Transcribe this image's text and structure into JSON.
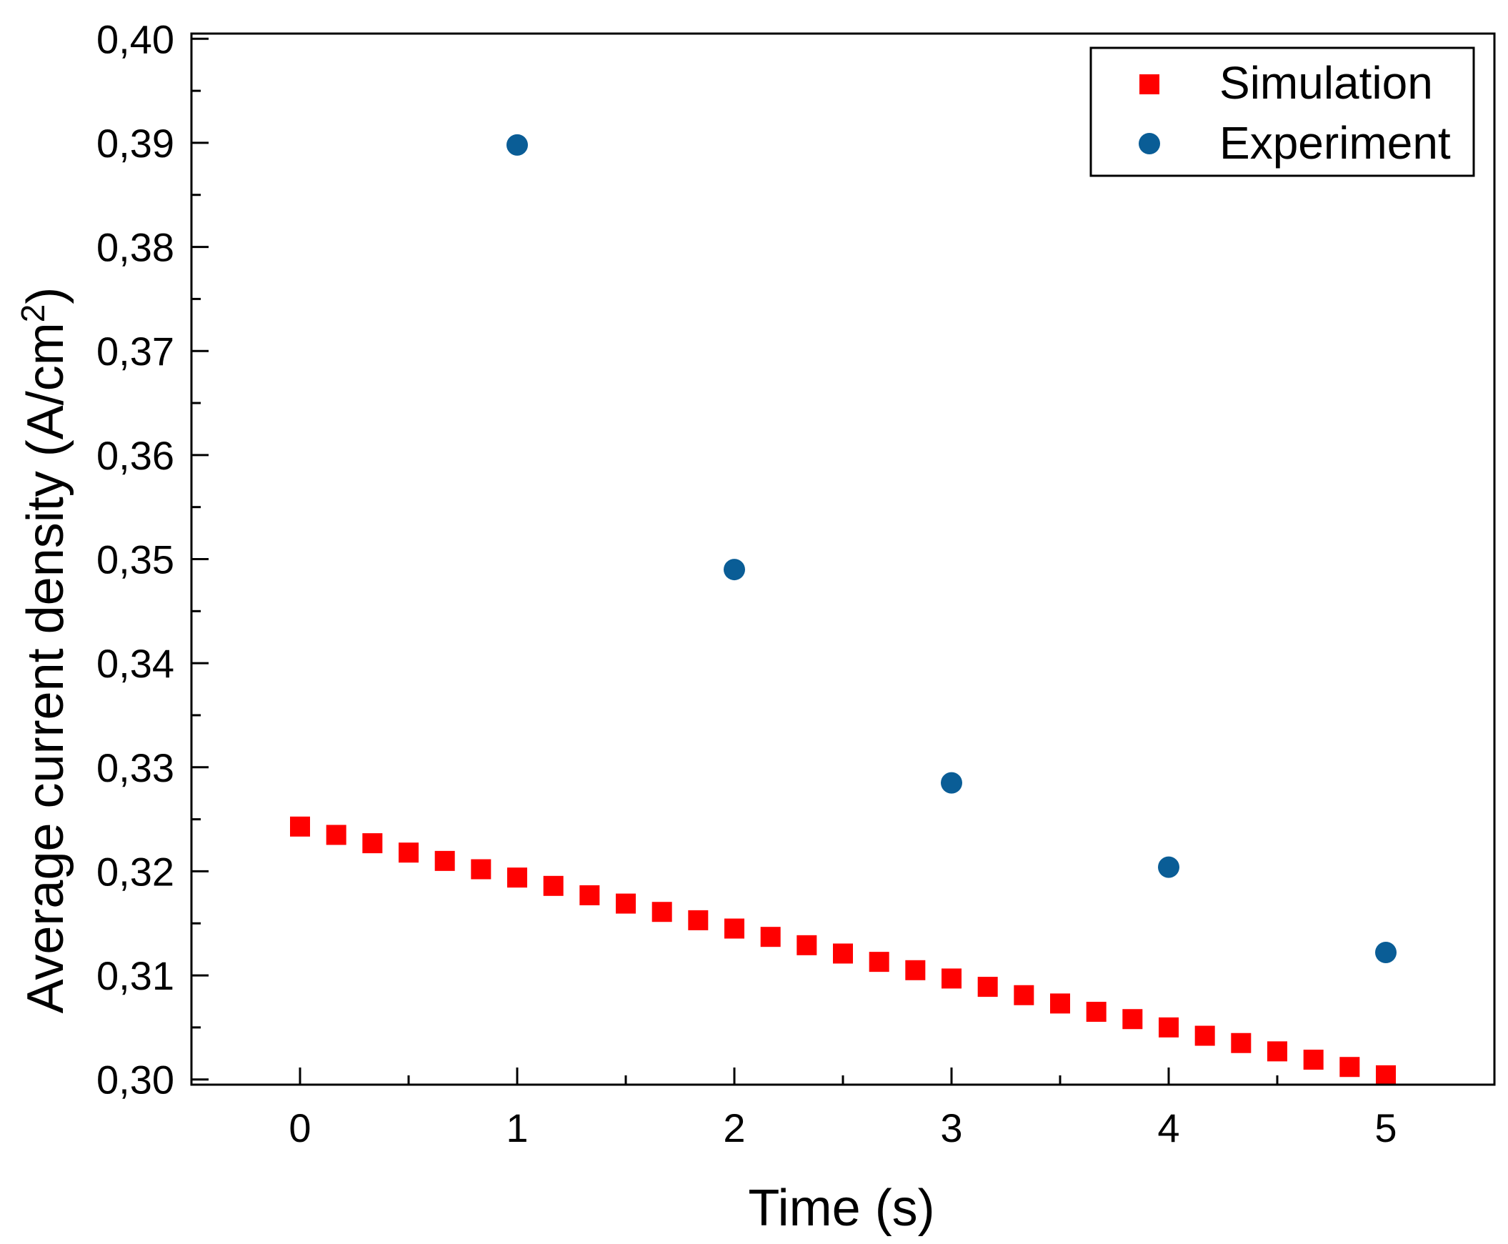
{
  "chart_data": {
    "type": "scatter",
    "xlabel": "Time (s)",
    "ylabel": "Average current density (A/cm",
    "ylabel_superscript": "2",
    "ylabel_suffix": ")",
    "xlim": [
      -0.5,
      5.5
    ],
    "ylim": [
      0.2995,
      0.4005
    ],
    "xticks": [
      0,
      1,
      2,
      3,
      4,
      5
    ],
    "xtick_labels": [
      "0",
      "1",
      "2",
      "3",
      "4",
      "5"
    ],
    "yticks": [
      0.3,
      0.31,
      0.32,
      0.33,
      0.34,
      0.35,
      0.36,
      0.37,
      0.38,
      0.39,
      0.4
    ],
    "ytick_labels": [
      "0,30",
      "0,31",
      "0,32",
      "0,33",
      "0,34",
      "0,35",
      "0,36",
      "0,37",
      "0,38",
      "0,39",
      "0,40"
    ],
    "legend_position": "top-right",
    "grid": false,
    "series": [
      {
        "name": "Simulation",
        "marker": "square",
        "color": "#ff0000",
        "x": [
          0,
          0.1667,
          0.3333,
          0.5,
          0.6667,
          0.8333,
          1,
          1.1667,
          1.3333,
          1.5,
          1.6667,
          1.8333,
          2,
          2.1667,
          2.3333,
          2.5,
          2.6667,
          2.8333,
          3,
          3.1667,
          3.3333,
          3.5,
          3.6667,
          3.8333,
          4,
          4.1667,
          4.3333,
          4.5,
          4.6667,
          4.8333,
          5
        ],
        "y": [
          0.3243,
          0.3235,
          0.3227,
          0.3218,
          0.321,
          0.3202,
          0.3194,
          0.3186,
          0.3177,
          0.3169,
          0.3161,
          0.3153,
          0.3145,
          0.3137,
          0.3129,
          0.3121,
          0.3113,
          0.3105,
          0.3097,
          0.3089,
          0.3081,
          0.3073,
          0.3065,
          0.3058,
          0.305,
          0.3042,
          0.3035,
          0.3027,
          0.3019,
          0.3012,
          0.3004
        ]
      },
      {
        "name": "Experiment",
        "marker": "circle",
        "color": "#0a5d96",
        "x": [
          1,
          2,
          3,
          4,
          5
        ],
        "y": [
          0.3898,
          0.349,
          0.3285,
          0.3204,
          0.3122
        ]
      }
    ]
  }
}
